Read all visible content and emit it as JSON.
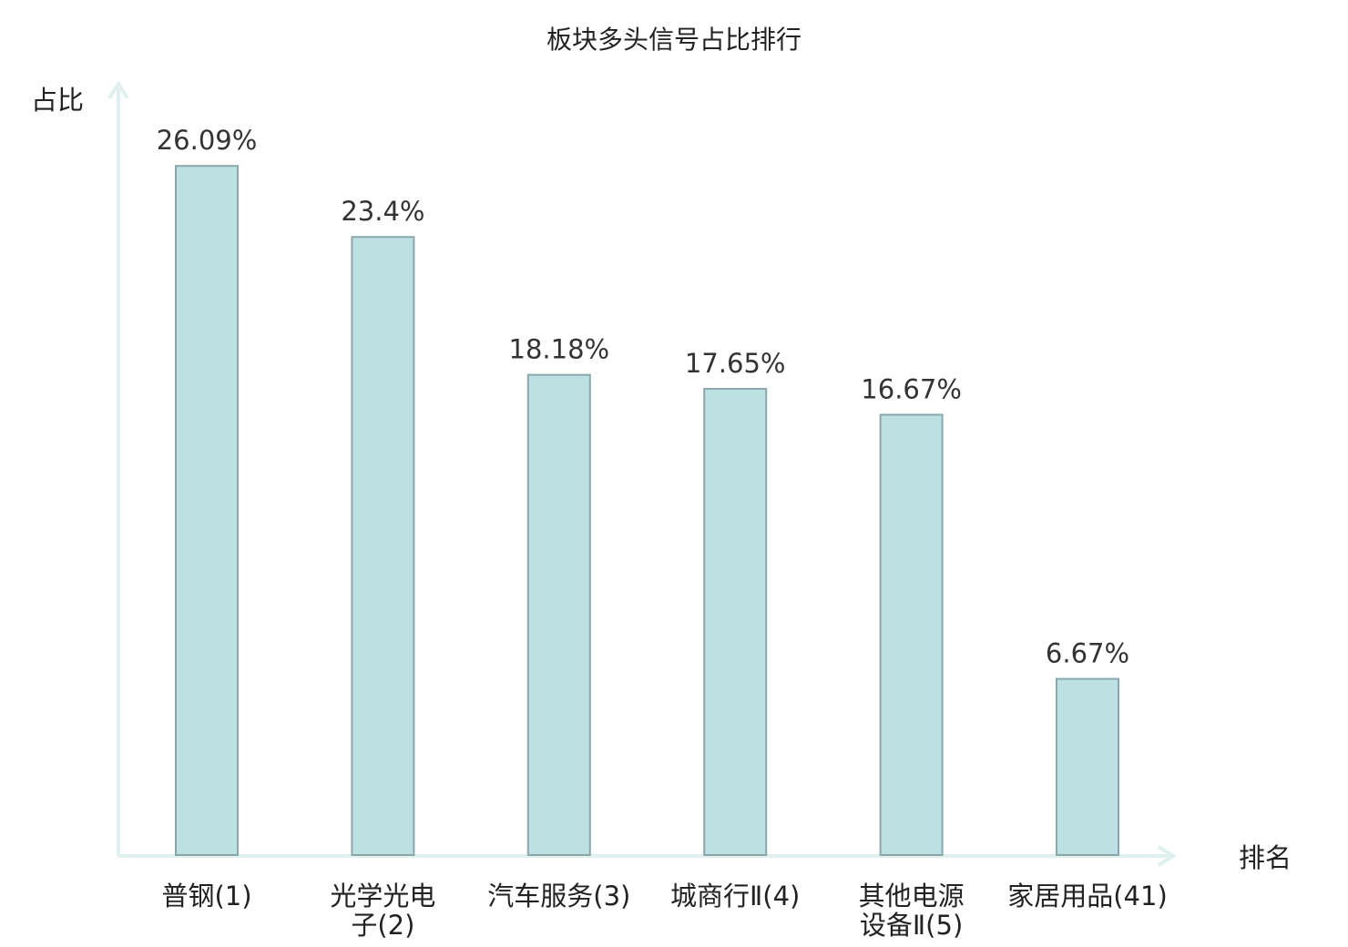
{
  "chart_data": {
    "type": "bar",
    "title": "板块多头信号占比排行",
    "ylabel": "占比",
    "xlabel": "排名",
    "categories": [
      [
        "普钢(1)"
      ],
      [
        "光学光电",
        "子(2)"
      ],
      [
        "汽车服务(3)"
      ],
      [
        "城商行Ⅱ(4)"
      ],
      [
        "其他电源",
        "设备Ⅱ(5)"
      ],
      [
        "家居用品(41)"
      ]
    ],
    "values": [
      26.09,
      23.4,
      18.18,
      17.65,
      16.67,
      6.67
    ],
    "value_labels": [
      "26.09%",
      "23.4%",
      "18.18%",
      "17.65%",
      "16.67%",
      "6.67%"
    ],
    "highlight_index": 5,
    "ylim": [
      0,
      29.2
    ],
    "grid": false,
    "colors": {
      "bar_fill": "#bde0e3",
      "bar_stroke": "#8aa8ab",
      "axis": "#dff0ee",
      "text": "#222222",
      "highlight_text": "#e02020"
    }
  }
}
